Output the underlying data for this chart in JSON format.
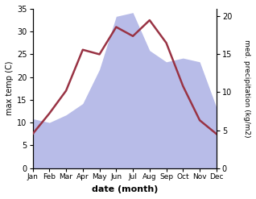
{
  "months": [
    "Jan",
    "Feb",
    "Mar",
    "Apr",
    "May",
    "Jun",
    "Jul",
    "Aug",
    "Sep",
    "Oct",
    "Nov",
    "Dec"
  ],
  "temp": [
    7.5,
    12.0,
    17.0,
    26.0,
    25.0,
    31.0,
    29.0,
    32.5,
    27.5,
    18.0,
    10.5,
    7.5
  ],
  "precip": [
    6.5,
    6.0,
    7.0,
    8.5,
    13.0,
    20.0,
    20.5,
    15.5,
    14.0,
    14.5,
    14.0,
    8.0
  ],
  "temp_color": "#993344",
  "precip_fill_color": "#b8bce8",
  "temp_ylim": [
    0,
    35
  ],
  "precip_ylim": [
    0,
    21.0
  ],
  "temp_yticks": [
    0,
    5,
    10,
    15,
    20,
    25,
    30,
    35
  ],
  "precip_yticks": [
    0,
    5,
    10,
    15,
    20
  ],
  "xlabel": "date (month)",
  "ylabel_left": "max temp (C)",
  "ylabel_right": "med. precipitation (kg/m2)",
  "line_width": 1.8
}
